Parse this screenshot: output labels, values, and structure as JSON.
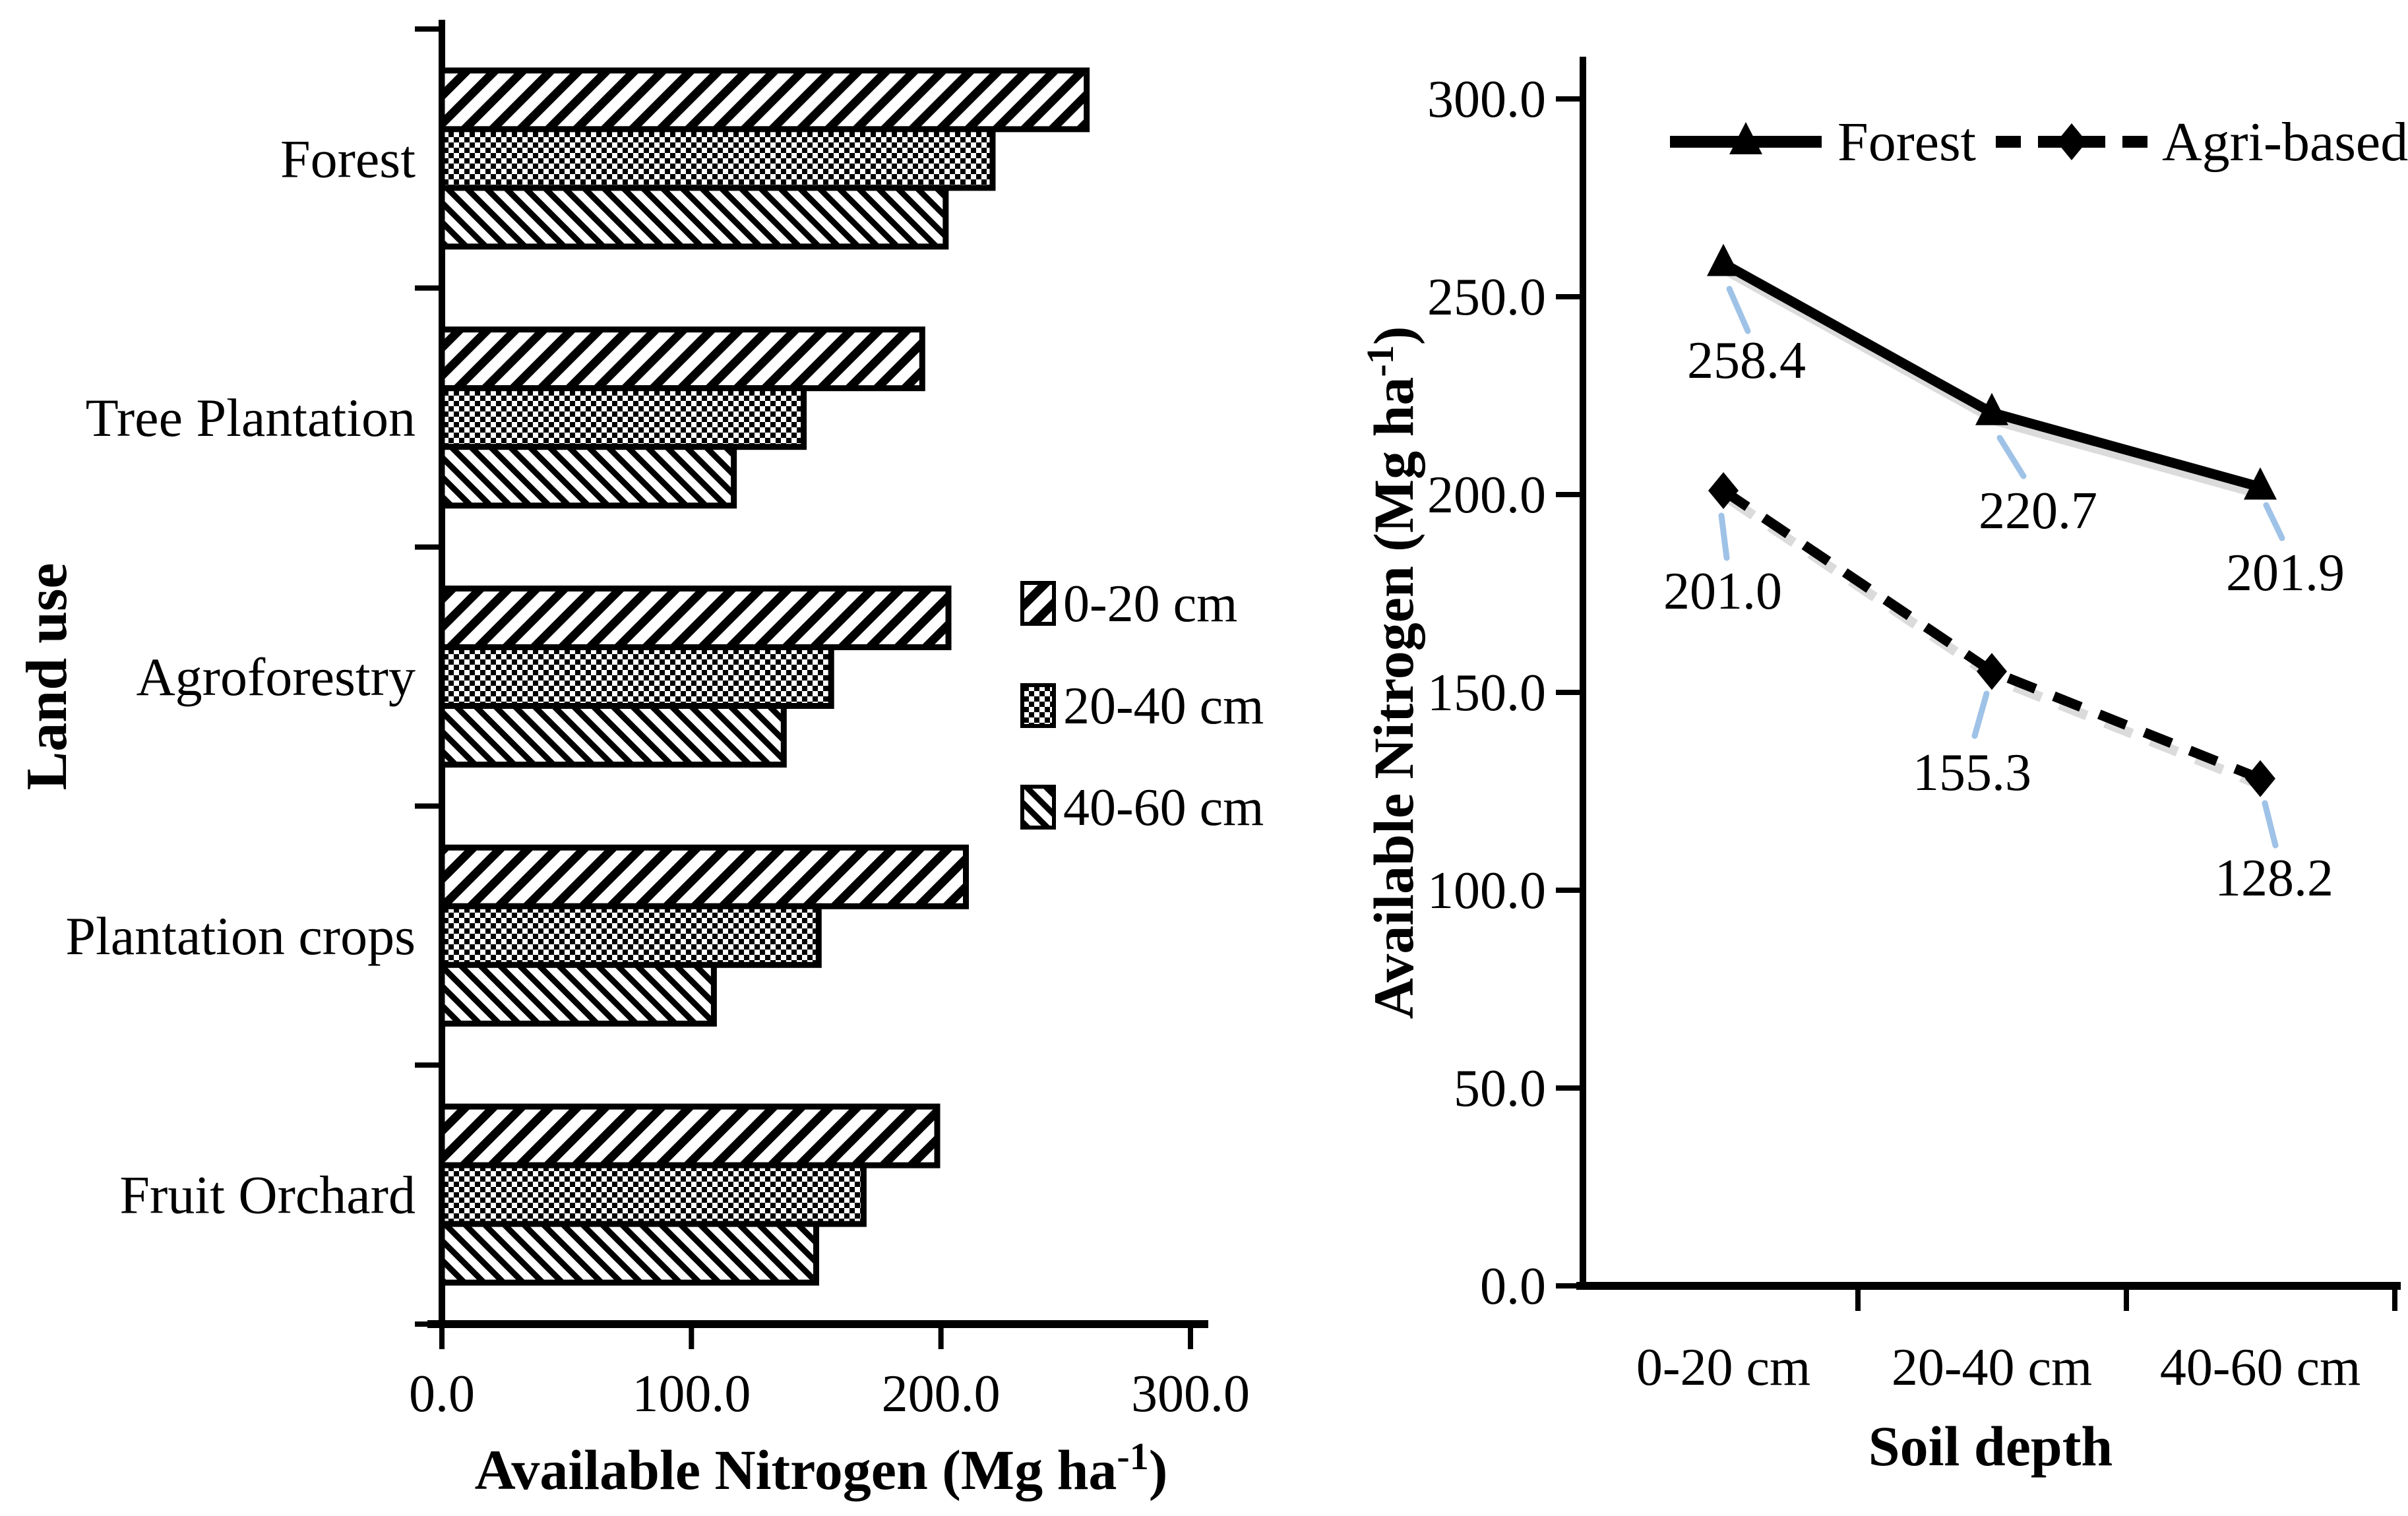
{
  "figure": {
    "background": "#ffffff",
    "ink_color": "#000000",
    "leader_line_color": "#9fc2e7",
    "shadow_color": "#b0b0b0"
  },
  "chart_data": [
    {
      "type": "bar",
      "orientation": "horizontal",
      "value_axis": {
        "title_pre": "Available Nitrogen (Mg ha",
        "title_sup": "-1",
        "title_post": ")",
        "ticks": [
          "0.0",
          "100.0",
          "200.0",
          "300.0"
        ],
        "tick_values": [
          0,
          100,
          200,
          300
        ],
        "lim": [
          0,
          300
        ]
      },
      "category_axis_title": "Land use",
      "categories": [
        "Forest",
        "Tree Plantation",
        "Agroforestry",
        "Plantation crops",
        "Fruit Orchard"
      ],
      "series": [
        {
          "name": "0-20 cm",
          "pattern": "diagonal-forward",
          "values": [
            258.4,
            192.5,
            203.0,
            210.0,
            198.5
          ]
        },
        {
          "name": "20-40 cm",
          "pattern": "checker",
          "values": [
            220.7,
            145.0,
            156.0,
            151.0,
            169.0
          ]
        },
        {
          "name": "40-60 cm",
          "pattern": "diagonal-back",
          "values": [
            201.9,
            117.0,
            137.0,
            109.0,
            150.0
          ]
        }
      ],
      "legend_position": "middle-right",
      "grid": false
    },
    {
      "type": "line",
      "x": [
        "0-20 cm",
        "20-40 cm",
        "40-60 cm"
      ],
      "xlabel": "Soil depth",
      "value_axis": {
        "title_pre": "Available Nitrogen (Mg ha",
        "title_sup": "-1",
        "title_post": ")",
        "ticks": [
          "0.0",
          "50.0",
          "100.0",
          "150.0",
          "200.0",
          "250.0",
          "300.0"
        ],
        "tick_values": [
          0,
          50,
          100,
          150,
          200,
          250,
          300
        ],
        "lim": [
          0,
          300
        ]
      },
      "series": [
        {
          "name": "Forest",
          "line_style": "solid",
          "marker": "triangle",
          "values": [
            258.4,
            220.7,
            201.9
          ],
          "data_labels": [
            "258.4",
            "220.7",
            "201.9"
          ]
        },
        {
          "name": "Agri-based",
          "line_style": "dashed",
          "marker": "diamond",
          "values": [
            201.0,
            155.3,
            128.2
          ],
          "data_labels": [
            "201.0",
            "155.3",
            "128.2"
          ]
        }
      ],
      "legend_position": "top",
      "grid": false
    }
  ]
}
